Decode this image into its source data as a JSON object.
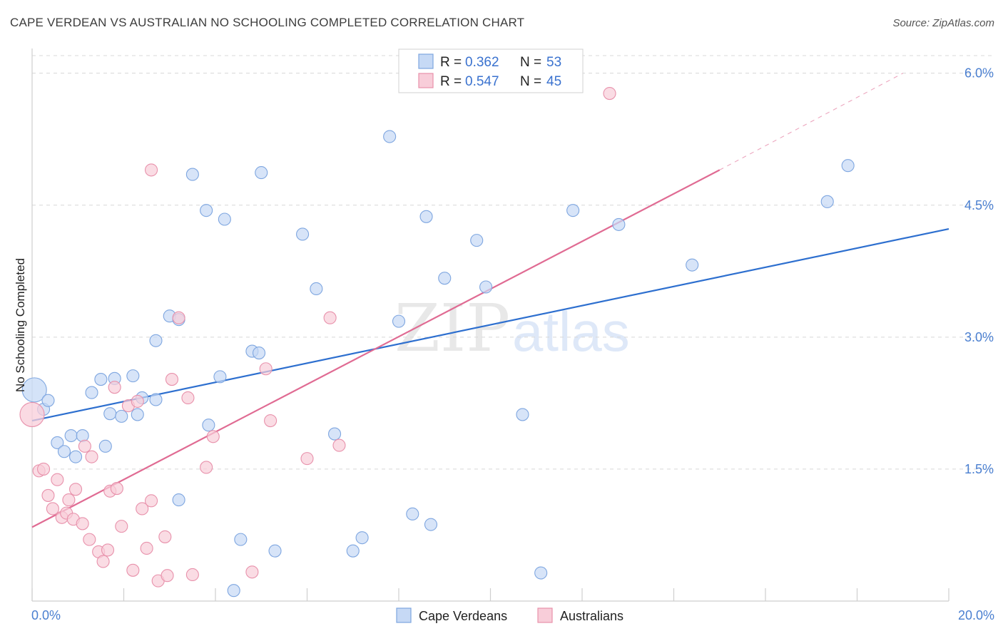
{
  "title": "CAPE VERDEAN VS AUSTRALIAN NO SCHOOLING COMPLETED CORRELATION CHART",
  "source": "Source: ZipAtlas.com",
  "watermark": {
    "zip": "ZIP",
    "atlas": "atlas"
  },
  "colors": {
    "blue_fill": "#c6d9f5",
    "blue_stroke": "#7ea6e0",
    "blue_line": "#2d6fcf",
    "pink_fill": "#f8cdd9",
    "pink_stroke": "#e891ab",
    "pink_line": "#e06b93",
    "grid": "#d8d8d8",
    "tick_text": "#4a7fd0"
  },
  "legend": {
    "rows": [
      {
        "r_label": "R =",
        "r_value": "0.362",
        "n_label": "N =",
        "n_value": "53"
      },
      {
        "r_label": "R =",
        "r_value": "0.547",
        "n_label": "N =",
        "n_value": "45"
      }
    ]
  },
  "bottom_legend": [
    "Cape Verdeans",
    "Australians"
  ],
  "chart_data": {
    "type": "scatter",
    "ylabel": "No Schooling Completed",
    "xlim": [
      0,
      20
    ],
    "ylim": [
      0,
      6.2
    ],
    "x_tick_labels": [
      "0.0%",
      "20.0%"
    ],
    "y_ticks": [
      1.5,
      3.0,
      4.5,
      6.0
    ],
    "y_tick_labels": [
      "1.5%",
      "3.0%",
      "4.5%",
      "6.0%"
    ],
    "grid": true,
    "legend_placement": "top-center",
    "series": [
      {
        "name": "Cape Verdeans",
        "color": "blue",
        "r": 0.362,
        "n": 53,
        "trend": {
          "x": [
            0,
            20
          ],
          "y": [
            2.05,
            4.23
          ]
        },
        "points": [
          [
            0.05,
            2.4
          ],
          [
            0.25,
            2.18
          ],
          [
            0.35,
            2.28
          ],
          [
            0.55,
            1.8
          ],
          [
            0.7,
            1.7
          ],
          [
            0.85,
            1.88
          ],
          [
            0.95,
            1.64
          ],
          [
            1.1,
            1.88
          ],
          [
            1.3,
            2.37
          ],
          [
            1.5,
            2.52
          ],
          [
            1.6,
            1.76
          ],
          [
            1.7,
            2.13
          ],
          [
            1.8,
            2.53
          ],
          [
            1.95,
            2.1
          ],
          [
            2.2,
            2.56
          ],
          [
            2.3,
            2.12
          ],
          [
            2.4,
            2.31
          ],
          [
            2.7,
            2.29
          ],
          [
            2.7,
            2.96
          ],
          [
            3.0,
            3.24
          ],
          [
            3.2,
            3.2
          ],
          [
            3.2,
            1.15
          ],
          [
            3.5,
            4.85
          ],
          [
            3.8,
            4.44
          ],
          [
            3.85,
            2.0
          ],
          [
            4.1,
            2.55
          ],
          [
            4.2,
            4.34
          ],
          [
            4.4,
            0.12
          ],
          [
            4.55,
            0.7
          ],
          [
            4.8,
            2.84
          ],
          [
            4.95,
            2.82
          ],
          [
            5.0,
            4.87
          ],
          [
            5.3,
            0.57
          ],
          [
            5.9,
            4.17
          ],
          [
            6.2,
            3.55
          ],
          [
            6.6,
            1.9
          ],
          [
            7.0,
            0.57
          ],
          [
            7.2,
            0.72
          ],
          [
            7.8,
            5.28
          ],
          [
            8.0,
            3.18
          ],
          [
            8.3,
            0.99
          ],
          [
            8.6,
            4.37
          ],
          [
            8.7,
            0.87
          ],
          [
            9.0,
            3.67
          ],
          [
            9.7,
            4.1
          ],
          [
            9.9,
            3.57
          ],
          [
            10.7,
            2.12
          ],
          [
            11.1,
            0.32
          ],
          [
            11.8,
            4.44
          ],
          [
            12.8,
            4.28
          ],
          [
            14.4,
            3.82
          ],
          [
            17.35,
            4.54
          ],
          [
            17.8,
            4.95
          ]
        ]
      },
      {
        "name": "Australians",
        "color": "pink",
        "r": 0.547,
        "n": 45,
        "trend": {
          "x": [
            0,
            15
          ],
          "y": [
            0.84,
            4.9
          ]
        },
        "trend_extension": {
          "x": [
            15,
            19
          ],
          "y": [
            4.9,
            6.0
          ]
        },
        "points": [
          [
            0.0,
            2.12
          ],
          [
            0.15,
            1.48
          ],
          [
            0.25,
            1.5
          ],
          [
            0.35,
            1.2
          ],
          [
            0.45,
            1.05
          ],
          [
            0.55,
            1.38
          ],
          [
            0.65,
            0.95
          ],
          [
            0.75,
            1.0
          ],
          [
            0.8,
            1.15
          ],
          [
            0.9,
            0.93
          ],
          [
            0.95,
            1.27
          ],
          [
            1.1,
            0.88
          ],
          [
            1.15,
            1.76
          ],
          [
            1.25,
            0.7
          ],
          [
            1.3,
            1.64
          ],
          [
            1.45,
            0.56
          ],
          [
            1.55,
            0.45
          ],
          [
            1.65,
            0.58
          ],
          [
            1.7,
            1.25
          ],
          [
            1.8,
            2.43
          ],
          [
            1.85,
            1.28
          ],
          [
            1.95,
            0.85
          ],
          [
            2.1,
            2.22
          ],
          [
            2.2,
            0.35
          ],
          [
            2.3,
            2.27
          ],
          [
            2.4,
            1.05
          ],
          [
            2.5,
            0.6
          ],
          [
            2.6,
            4.9
          ],
          [
            2.6,
            1.14
          ],
          [
            2.75,
            0.23
          ],
          [
            2.9,
            0.73
          ],
          [
            2.95,
            0.29
          ],
          [
            3.05,
            2.52
          ],
          [
            3.2,
            3.22
          ],
          [
            3.4,
            2.31
          ],
          [
            3.5,
            0.3
          ],
          [
            3.8,
            1.52
          ],
          [
            3.95,
            1.87
          ],
          [
            4.8,
            0.33
          ],
          [
            5.1,
            2.64
          ],
          [
            5.2,
            2.05
          ],
          [
            6.0,
            1.62
          ],
          [
            6.5,
            3.22
          ],
          [
            6.7,
            1.77
          ],
          [
            12.6,
            5.77
          ]
        ]
      }
    ]
  }
}
